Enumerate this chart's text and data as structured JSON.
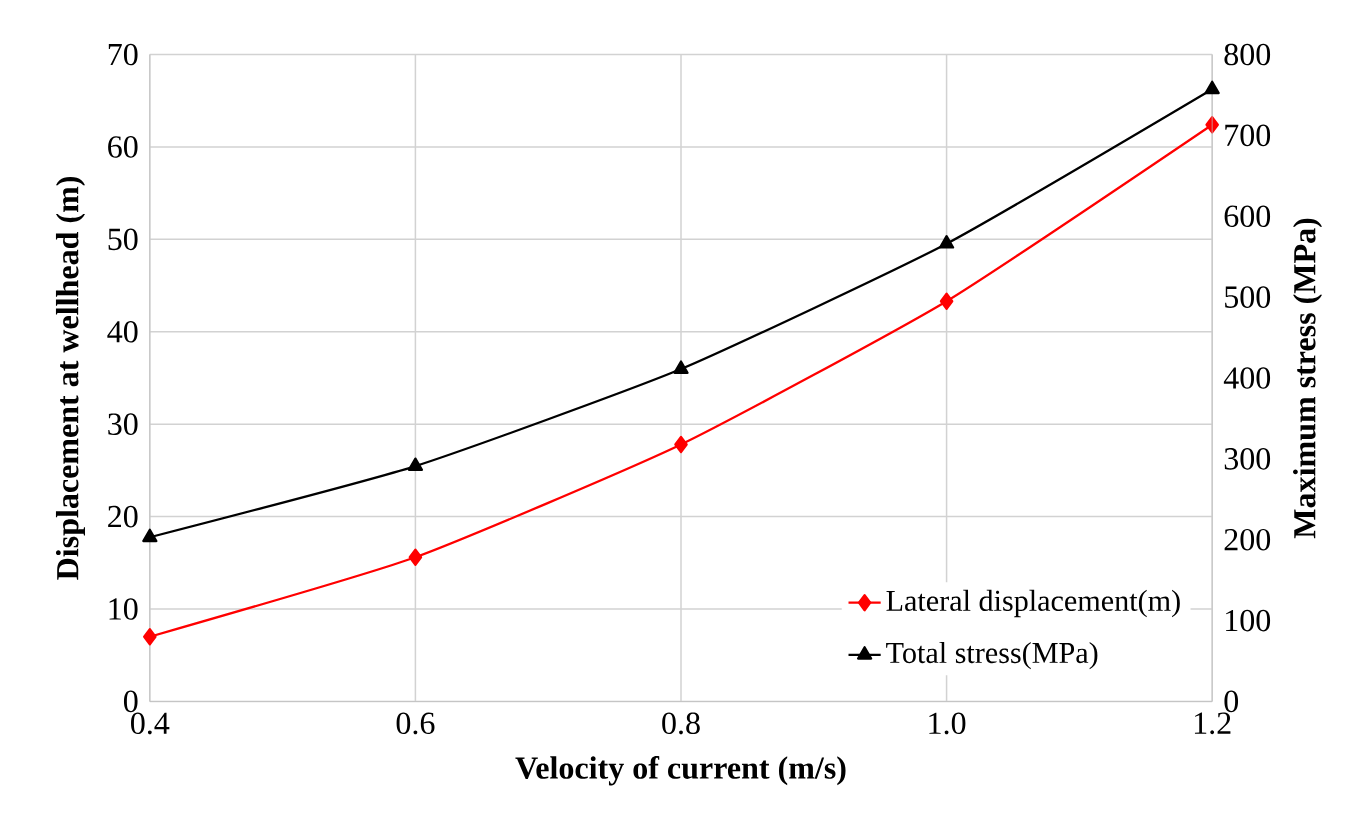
{
  "chart_data": {
    "type": "line",
    "xlabel": "Velocity of current (m/s)",
    "ylabel": "Displacement at wellhead (m)",
    "y2label": "Maximum stress (MPa)",
    "x": [
      0.4,
      0.6,
      0.8,
      1.0,
      1.2
    ],
    "xlim": [
      0.4,
      1.2
    ],
    "xticks": [
      {
        "value": 0.4,
        "label": "0.4"
      },
      {
        "value": 0.6,
        "label": "0.6"
      },
      {
        "value": 0.8,
        "label": "0.8"
      },
      {
        "value": 1.0,
        "label": "1.0"
      },
      {
        "value": 1.2,
        "label": "1.2"
      }
    ],
    "ylim": [
      0,
      70
    ],
    "yticks": [
      0,
      10,
      20,
      30,
      40,
      50,
      60,
      70
    ],
    "y2lim": [
      0,
      800
    ],
    "y2ticks": [
      0,
      100,
      200,
      300,
      400,
      500,
      600,
      700,
      800
    ],
    "series": [
      {
        "name": "Lateral displacement(m)",
        "color": "#ff0000",
        "marker": "diamond",
        "values": [
          7.0,
          15.6,
          27.8,
          43.3,
          62.4
        ]
      },
      {
        "name": "Total stress(MPa)",
        "color": "#000000",
        "marker": "triangle",
        "axis": "y2",
        "values": [
          203,
          291,
          411,
          566,
          757
        ]
      }
    ],
    "grid": true,
    "legend": "bottom right",
    "line_style": "solid"
  }
}
